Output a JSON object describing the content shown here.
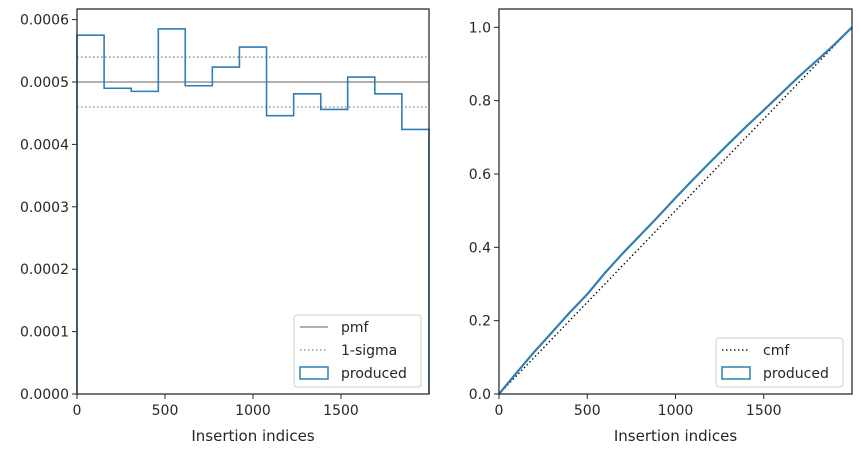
{
  "chart_data": [
    {
      "type": "step-histogram",
      "xlabel": "Insertion indices",
      "ylabel": "",
      "xlim": [
        0,
        2000
      ],
      "ylim": [
        0,
        0.000617
      ],
      "xticks": [
        "0",
        "500",
        "1000",
        "1500"
      ],
      "xtick_values": [
        0,
        500,
        1000,
        1500
      ],
      "yticks": [
        "0.0000",
        "0.0001",
        "0.0002",
        "0.0003",
        "0.0004",
        "0.0005",
        "0.0006"
      ],
      "ytick_values": [
        0,
        0.0001,
        0.0002,
        0.0003,
        0.0004,
        0.0005,
        0.0006
      ],
      "bin_edges": [
        0,
        154,
        308,
        462,
        615,
        769,
        923,
        1077,
        1231,
        1385,
        1538,
        1692,
        1846,
        2000
      ],
      "series": [
        {
          "name": "pmf",
          "kind": "hline",
          "value": 0.0005,
          "color": "#808080",
          "style": "solid"
        },
        {
          "name": "1-sigma",
          "kind": "hlines",
          "values": [
            0.00054,
            0.00046
          ],
          "color": "#808080",
          "style": "dotted"
        },
        {
          "name": "produced",
          "kind": "step",
          "color": "#2f7fb4",
          "values": [
            0.000575,
            0.00049,
            0.000485,
            0.000585,
            0.000494,
            0.000524,
            0.000556,
            0.000446,
            0.000481,
            0.000456,
            0.000508,
            0.000481,
            0.000424
          ]
        }
      ],
      "legend": {
        "position": "lower-right",
        "entries": [
          "pmf",
          "1-sigma",
          "produced"
        ]
      },
      "grid": false
    },
    {
      "type": "line",
      "xlabel": "Insertion indices",
      "ylabel": "",
      "xlim": [
        0,
        2000
      ],
      "ylim": [
        0,
        1.05
      ],
      "xticks": [
        "0",
        "500",
        "1000",
        "1500"
      ],
      "xtick_values": [
        0,
        500,
        1000,
        1500
      ],
      "yticks": [
        "0.0",
        "0.2",
        "0.4",
        "0.6",
        "0.8",
        "1.0"
      ],
      "ytick_values": [
        0,
        0.2,
        0.4,
        0.6,
        0.8,
        1.0
      ],
      "series": [
        {
          "name": "cmf",
          "color": "#000000",
          "style": "dotted",
          "x": [
            0,
            2000
          ],
          "y": [
            0,
            1.0
          ]
        },
        {
          "name": "produced",
          "color": "#2f7fb4",
          "style": "solid",
          "x": [
            0,
            100,
            200,
            300,
            400,
            500,
            600,
            700,
            800,
            900,
            1000,
            1100,
            1200,
            1300,
            1400,
            1500,
            1600,
            1700,
            1800,
            1900,
            2000
          ],
          "y": [
            0,
            0.058,
            0.115,
            0.168,
            0.222,
            0.272,
            0.33,
            0.383,
            0.433,
            0.483,
            0.535,
            0.585,
            0.634,
            0.682,
            0.729,
            0.774,
            0.82,
            0.866,
            0.909,
            0.953,
            1.0
          ]
        }
      ],
      "legend": {
        "position": "lower-right",
        "entries": [
          "cmf",
          "produced"
        ]
      },
      "grid": false
    }
  ]
}
